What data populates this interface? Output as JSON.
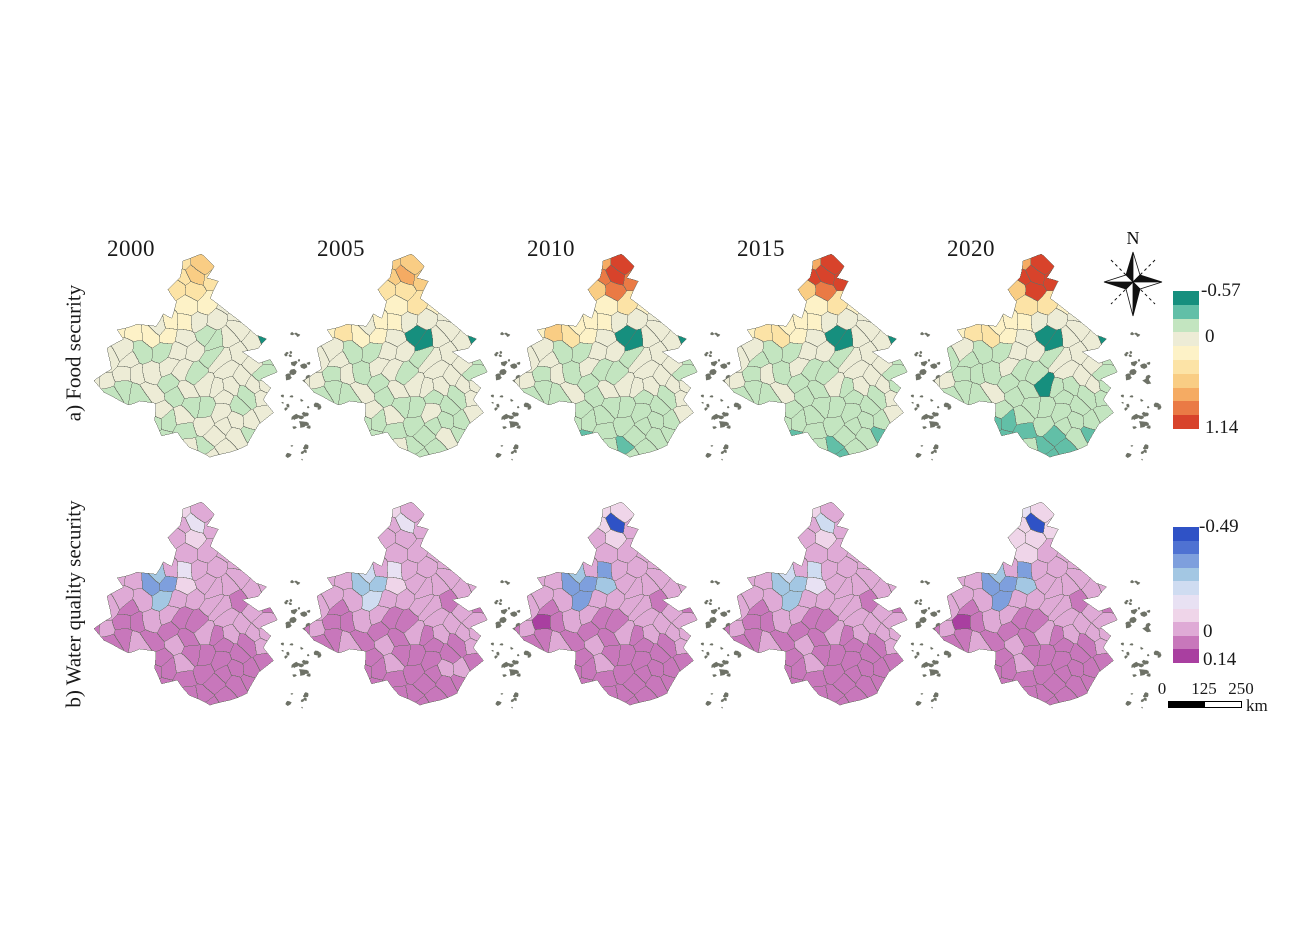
{
  "years": [
    "2000",
    "2005",
    "2010",
    "2015",
    "2020"
  ],
  "compass": {
    "label": "N"
  },
  "scalebar": {
    "ticks": [
      "0",
      "125",
      "250"
    ],
    "unit": "km"
  },
  "map_style": {
    "county_border_color": "#686c62",
    "island_color": "#6e7267",
    "background": "#ffffff"
  },
  "rows": [
    {
      "id": "a",
      "label": "a) Food security",
      "legend": {
        "min_label": "-0.57",
        "zero_label": "0",
        "max_label": "1.14",
        "min": -0.57,
        "max": 1.14,
        "colors": [
          "#168f7e",
          "#62bfa7",
          "#c3e5c0",
          "#edecd6",
          "#fdf2c7",
          "#fce3a6",
          "#f9cd84",
          "#f5ab63",
          "#ea7a45",
          "#d8432b"
        ]
      },
      "field": {
        "north_intensity": [
          0.45,
          0.55,
          0.75,
          0.85,
          0.9
        ],
        "south_intensity": [
          0.15,
          0.4,
          0.6,
          0.8,
          1.0
        ],
        "noise": 0.11,
        "hotspots": [
          {
            "x": 0.53,
            "y": 0.1,
            "r": 0.085,
            "dv": [
              0.2,
              0.3,
              0.75,
              0.8,
              0.85
            ]
          },
          {
            "x": 0.23,
            "y": 0.33,
            "r": 0.07,
            "dv": [
              0.2,
              0.25,
              0.5,
              0.45,
              0.45
            ]
          },
          {
            "x": 0.6,
            "y": 0.42,
            "r": 0.06,
            "dv": [
              -0.2,
              -0.8,
              -0.85,
              -0.9,
              -0.9
            ]
          },
          {
            "x": 0.85,
            "y": 0.41,
            "r": 0.05,
            "dv": [
              -0.5,
              -0.55,
              -0.6,
              -0.6,
              -0.85
            ]
          },
          {
            "x": 0.6,
            "y": 0.62,
            "r": 0.045,
            "dv": [
              0,
              0,
              0,
              0,
              -0.85
            ]
          }
        ]
      }
    },
    {
      "id": "b",
      "label": "b) Water quality security",
      "legend": {
        "min_label": "-0.49",
        "zero_label": "0",
        "max_label": "0.14",
        "min": -0.49,
        "max": 0.14,
        "colors": [
          "#2f52c6",
          "#4f72d2",
          "#7e9fdd",
          "#a3c7e3",
          "#cfdcf1",
          "#e8e1f3",
          "#efd5e9",
          "#dfaad6",
          "#c877bb",
          "#a93fa0"
        ]
      },
      "field": {
        "north_blue": [
          0.4,
          0.3,
          0.9,
          0.5,
          1.0
        ],
        "noise": 0.03,
        "hotspots": [
          {
            "x": 0.3,
            "y": 0.4,
            "r": 0.1,
            "dv": [
              -0.42,
              -0.33,
              -0.45,
              -0.36,
              -0.45
            ]
          },
          {
            "x": 0.46,
            "y": 0.35,
            "r": 0.06,
            "dv": [
              -0.18,
              -0.15,
              -0.42,
              -0.25,
              -0.42
            ]
          },
          {
            "x": 0.55,
            "y": 0.1,
            "r": 0.06,
            "dv": [
              -0.18,
              -0.12,
              -0.5,
              -0.22,
              -0.52
            ]
          },
          {
            "x": 0.64,
            "y": 0.17,
            "r": 0.05,
            "dv": [
              -0.28,
              -0.22,
              -0.28,
              -0.3,
              -0.32
            ]
          },
          {
            "x": 0.16,
            "y": 0.6,
            "r": 0.08,
            "dv": [
              0.01,
              0.01,
              0.07,
              0.02,
              0.08
            ]
          },
          {
            "x": 0.76,
            "y": 0.82,
            "r": 0.12,
            "dv": [
              0.035,
              0.01,
              0.02,
              0.015,
              0.02
            ]
          }
        ]
      }
    }
  ]
}
